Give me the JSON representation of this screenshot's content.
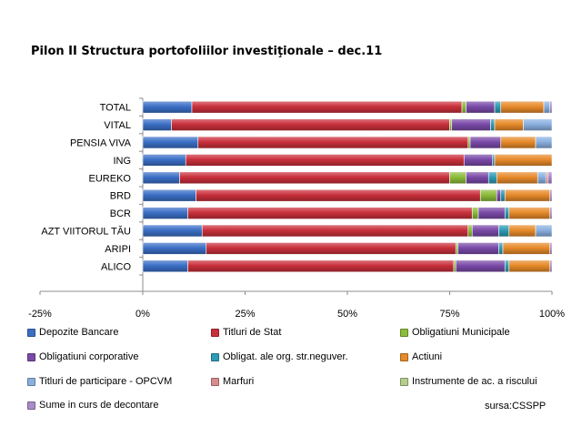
{
  "title": "Pilon II Structura portofoliilor investiţionale – dec.11",
  "source": "sursa:CSSPP",
  "chart_data": {
    "type": "bar",
    "orientation": "horizontal",
    "stacked": true,
    "categories": [
      "TOTAL",
      "VITAL",
      "PENSIA VIVA",
      "ING",
      "EUREKO",
      "BRD",
      "BCR",
      "AZT VIITORUL TĂU",
      "ARIPI",
      "ALICO"
    ],
    "xlim": [
      -25,
      100
    ],
    "x_ticks": [
      "-25%",
      "0%",
      "25%",
      "50%",
      "75%",
      "100%"
    ],
    "x_tick_values": [
      -25,
      0,
      25,
      50,
      75,
      100
    ],
    "grid": false,
    "legend_position": "bottom",
    "series": [
      {
        "name": "Depozite Bancare",
        "color": "#3b6fc6",
        "values": [
          12,
          7,
          13.5,
          10.5,
          9,
          13,
          11,
          14.5,
          15.5,
          11
        ]
      },
      {
        "name": "Titluri de Stat",
        "color": "#c9303b",
        "values": [
          66,
          68,
          66,
          68,
          66,
          69.5,
          69.5,
          65,
          61,
          65
        ]
      },
      {
        "name": "Obligatiuni Municipale",
        "color": "#8bbc3a",
        "values": [
          1,
          0.5,
          0.5,
          0,
          4,
          4,
          1.5,
          1,
          0.5,
          0.5
        ]
      },
      {
        "name": "Obligatiuni corporative",
        "color": "#7a4aa8",
        "values": [
          7,
          9.5,
          7.5,
          7,
          5.5,
          1,
          6.5,
          6.5,
          10,
          12
        ]
      },
      {
        "name": "Obligat. ale org. str.neguver.",
        "color": "#2d9bb5",
        "values": [
          1.5,
          1,
          0,
          0.5,
          2,
          1,
          1,
          2.5,
          1,
          1
        ]
      },
      {
        "name": "Actiuni",
        "color": "#e78a2a",
        "values": [
          10.5,
          7,
          8.5,
          14,
          10,
          11,
          10,
          6.5,
          11.5,
          10
        ]
      },
      {
        "name": "Titluri de participare - OPCVM",
        "color": "#8ab0e0",
        "values": [
          1.5,
          7,
          4,
          0,
          2,
          0,
          0,
          4,
          0,
          0
        ]
      },
      {
        "name": "Marfuri",
        "color": "#d98c8c",
        "values": [
          0,
          0,
          0,
          0,
          0.5,
          0,
          0,
          0,
          0,
          0
        ]
      },
      {
        "name": "Instrumente de ac. a riscului",
        "color": "#b5cf8a",
        "values": [
          0,
          0,
          0,
          0,
          0,
          0,
          0,
          0,
          0,
          0
        ]
      },
      {
        "name": "Sume in curs de decontare",
        "color": "#a98bc9",
        "values": [
          0.5,
          0,
          0,
          0,
          1,
          0.5,
          0.5,
          0,
          0.5,
          0.5
        ]
      }
    ]
  }
}
